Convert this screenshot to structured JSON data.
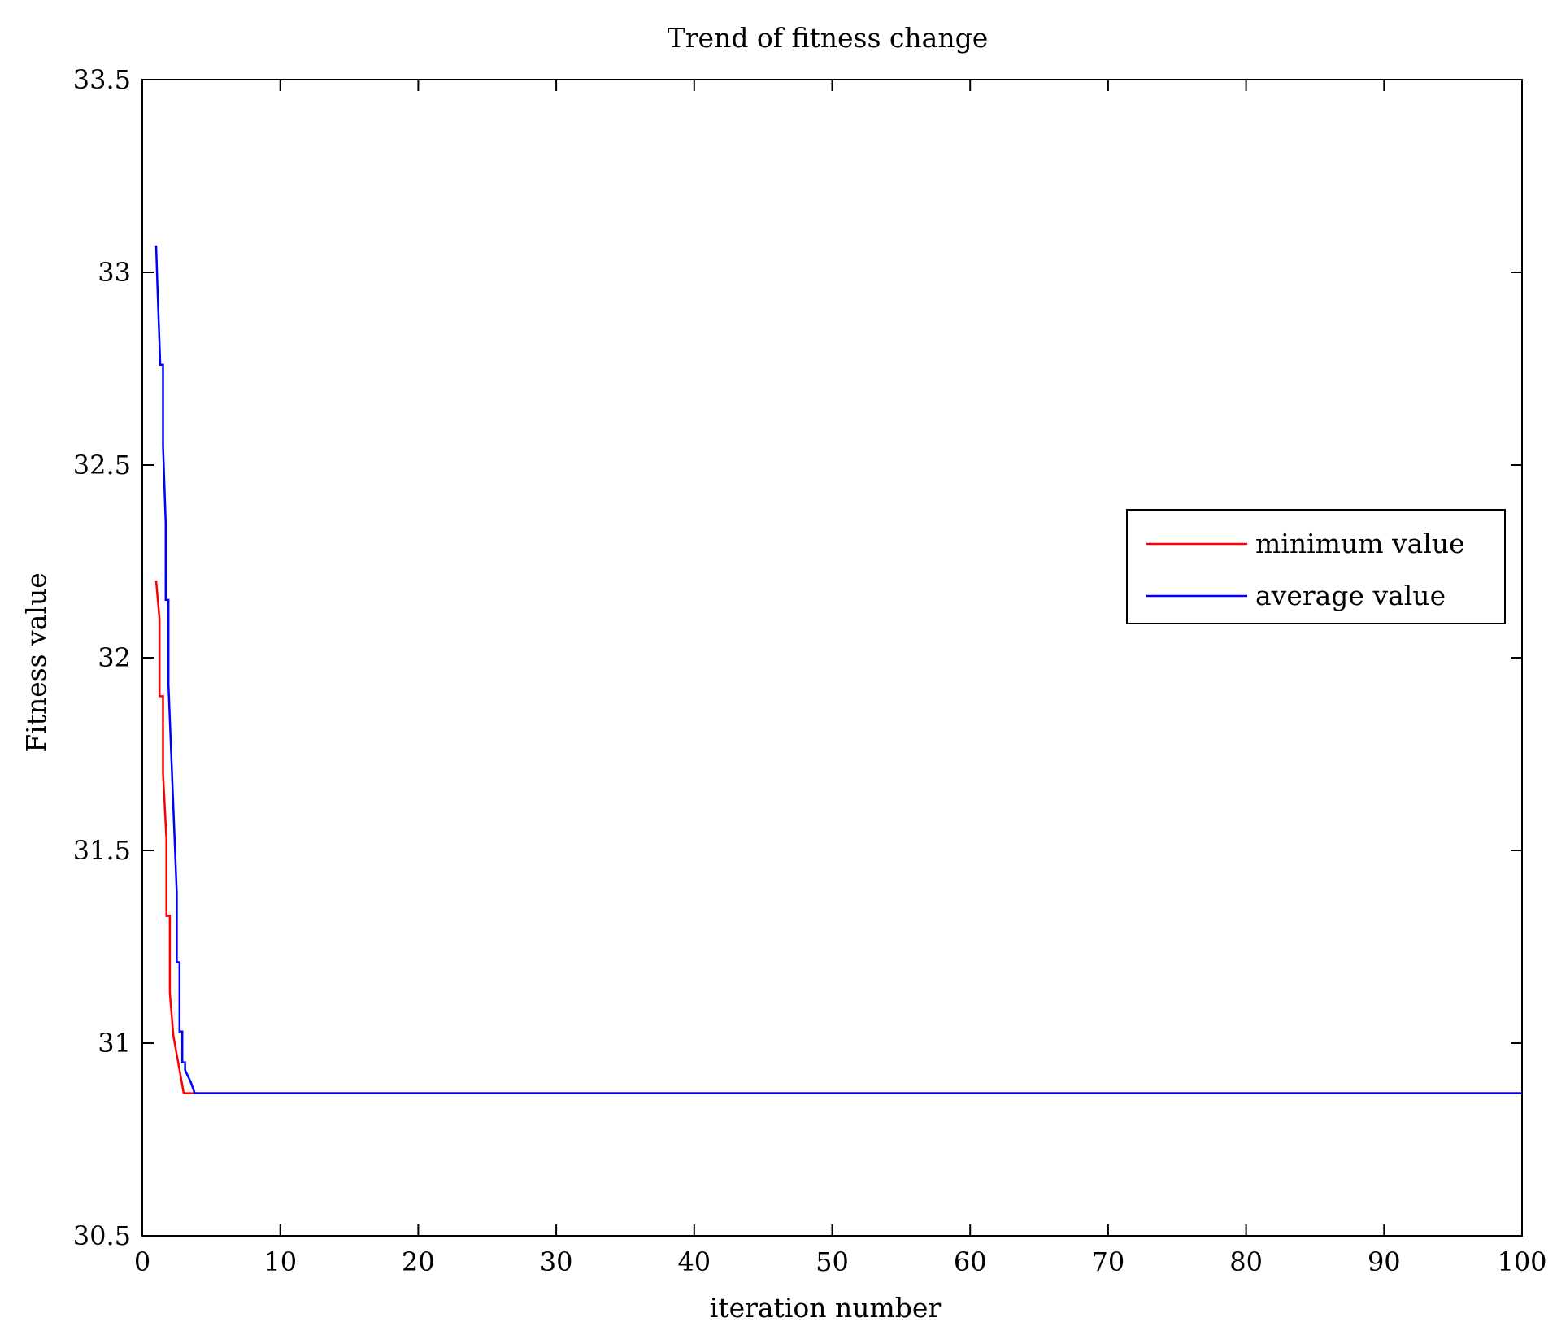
{
  "chart_data": {
    "type": "line",
    "title": "Trend of fitness change",
    "xlabel": "iteration number",
    "ylabel": "Fitness value",
    "xlim": [
      0,
      100
    ],
    "ylim": [
      30.5,
      33.5
    ],
    "xticks": [
      0,
      10,
      20,
      30,
      40,
      50,
      60,
      70,
      80,
      90,
      100
    ],
    "yticks": [
      30.5,
      31,
      31.5,
      32,
      32.5,
      33,
      33.5
    ],
    "grid": false,
    "legend_position": "right",
    "series": [
      {
        "name": "minimum value",
        "color": "#ff0000",
        "x": [
          1,
          1.25,
          1.25,
          1.5,
          1.5,
          1.75,
          1.75,
          2,
          2,
          2.25,
          2.5,
          2.75,
          3,
          100
        ],
        "y": [
          32.2,
          32.1,
          31.9,
          31.9,
          31.7,
          31.53,
          31.33,
          31.33,
          31.13,
          31.02,
          30.97,
          30.92,
          30.87,
          30.87
        ]
      },
      {
        "name": "average value",
        "color": "#0000ff",
        "x": [
          1,
          1.1,
          1.3,
          1.5,
          1.5,
          1.7,
          1.7,
          1.9,
          1.9,
          2.1,
          2.1,
          2.3,
          2.3,
          2.5,
          2.5,
          2.7,
          2.7,
          2.9,
          2.9,
          3.1,
          3.1,
          3.5,
          3.8,
          100
        ],
        "y": [
          33.07,
          32.96,
          32.76,
          32.76,
          32.55,
          32.35,
          32.15,
          32.15,
          31.93,
          31.75,
          31.75,
          31.57,
          31.57,
          31.39,
          31.21,
          31.21,
          31.03,
          31.03,
          30.95,
          30.95,
          30.93,
          30.9,
          30.87,
          30.87
        ]
      }
    ]
  }
}
